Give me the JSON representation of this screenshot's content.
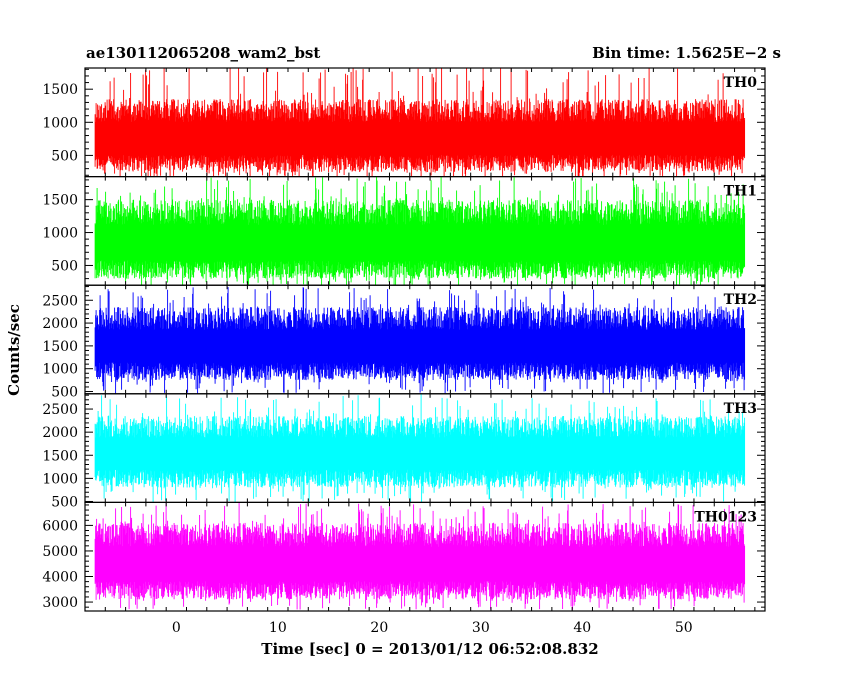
{
  "chart_data": {
    "type": "line",
    "title_left": "ae130112065208_wam2_bst",
    "title_right": "Bin time: 1.5625E−2 s",
    "xlabel": "Time [sec] 0 = 2013/01/12 06:52:08.832",
    "ylabel": "Counts/sec",
    "xlim": [
      -9,
      58
    ],
    "xticks": [
      0,
      10,
      20,
      30,
      40,
      50
    ],
    "x_range_data": [
      -8,
      56
    ],
    "grid": false,
    "panels": [
      {
        "name": "TH0",
        "color": "#ff0000",
        "ylim": [
          180,
          1820
        ],
        "yticks": [
          500,
          1000,
          1500
        ],
        "band": {
          "center": 720,
          "typical_low": 250,
          "typical_high": 1350,
          "min": 150,
          "max": 1900
        }
      },
      {
        "name": "TH1",
        "color": "#00ff00",
        "ylim": [
          200,
          1850
        ],
        "yticks": [
          500,
          1000,
          1500
        ],
        "band": {
          "center": 800,
          "typical_low": 300,
          "typical_high": 1500,
          "min": 170,
          "max": 1850
        }
      },
      {
        "name": "TH2",
        "color": "#0000ff",
        "ylim": [
          450,
          2830
        ],
        "yticks": [
          500,
          1000,
          1500,
          2000,
          2500
        ],
        "band": {
          "center": 1450,
          "typical_low": 750,
          "typical_high": 2350,
          "min": 450,
          "max": 2830
        }
      },
      {
        "name": "TH3",
        "color": "#00ffff",
        "ylim": [
          480,
          2830
        ],
        "yticks": [
          500,
          1000,
          1500,
          2000,
          2500
        ],
        "band": {
          "center": 1500,
          "typical_low": 800,
          "typical_high": 2350,
          "min": 480,
          "max": 2830
        }
      },
      {
        "name": "TH0123",
        "color": "#ff00ff",
        "ylim": [
          2650,
          6900
        ],
        "yticks": [
          3000,
          4000,
          5000,
          6000
        ],
        "band": {
          "center": 4400,
          "typical_low": 3100,
          "typical_high": 6100,
          "min": 2700,
          "max": 6900
        }
      }
    ]
  }
}
